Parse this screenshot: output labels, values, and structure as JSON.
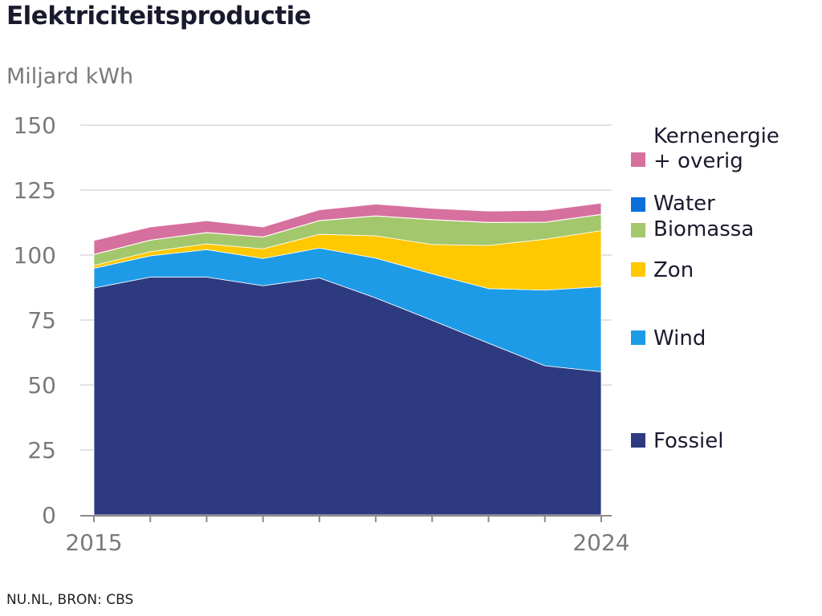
{
  "header": {
    "title": "Elektriciteitsproductie",
    "unit": "Miljard kWh"
  },
  "footer": {
    "source": "NU.NL, BRON: CBS"
  },
  "chart_data": {
    "type": "area",
    "stacked": true,
    "title": "Elektriciteitsproductie",
    "ylabel": "Miljard kWh",
    "xlabel": "",
    "x": [
      2015,
      2016,
      2017,
      2018,
      2019,
      2020,
      2021,
      2022,
      2023,
      2024
    ],
    "x_tick_labels": [
      "2015",
      "2024"
    ],
    "ylim": [
      0,
      150
    ],
    "y_ticks": [
      0,
      25,
      50,
      75,
      100,
      125,
      150
    ],
    "grid": true,
    "legend_position": "right",
    "series": [
      {
        "name": "Fossiel",
        "color": "#2e3a80",
        "values": [
          87.3,
          91.5,
          91.5,
          88.2,
          91.2,
          83.5,
          74.9,
          66.1,
          57.4,
          55.1
        ]
      },
      {
        "name": "Wind",
        "color": "#1e9be6",
        "values": [
          7.6,
          8.2,
          10.6,
          10.5,
          11.5,
          15.3,
          17.9,
          21.0,
          29.1,
          32.7
        ]
      },
      {
        "name": "Zon",
        "color": "#ffc800",
        "values": [
          1.1,
          1.6,
          2.2,
          3.7,
          5.3,
          8.6,
          11.3,
          16.6,
          19.6,
          21.6
        ]
      },
      {
        "name": "Biomassa",
        "color": "#a3c76c",
        "values": [
          4.2,
          4.4,
          4.3,
          4.5,
          5.2,
          7.6,
          9.5,
          8.8,
          6.5,
          6.2
        ]
      },
      {
        "name": "Water",
        "color": "#0b6fd9",
        "values": [
          0.1,
          0.1,
          0.1,
          0.1,
          0.1,
          0.1,
          0.1,
          0.1,
          0.1,
          0.1
        ]
      },
      {
        "name": "Kernenergie\n+ overig",
        "color": "#d6709e",
        "values": [
          5.3,
          5.0,
          4.5,
          3.8,
          4.1,
          4.5,
          4.3,
          4.3,
          4.5,
          4.3
        ]
      }
    ],
    "legend": [
      {
        "name": "Kernenergie",
        "name2": "+ overig",
        "color": "#d6709e"
      },
      {
        "name": "Water",
        "color": "#0b6fd9"
      },
      {
        "name": "Biomassa",
        "color": "#a3c76c"
      },
      {
        "name": "Zon",
        "color": "#ffc800"
      },
      {
        "name": "Wind",
        "color": "#1e9be6"
      },
      {
        "name": "Fossiel",
        "color": "#2e3a80"
      }
    ]
  }
}
